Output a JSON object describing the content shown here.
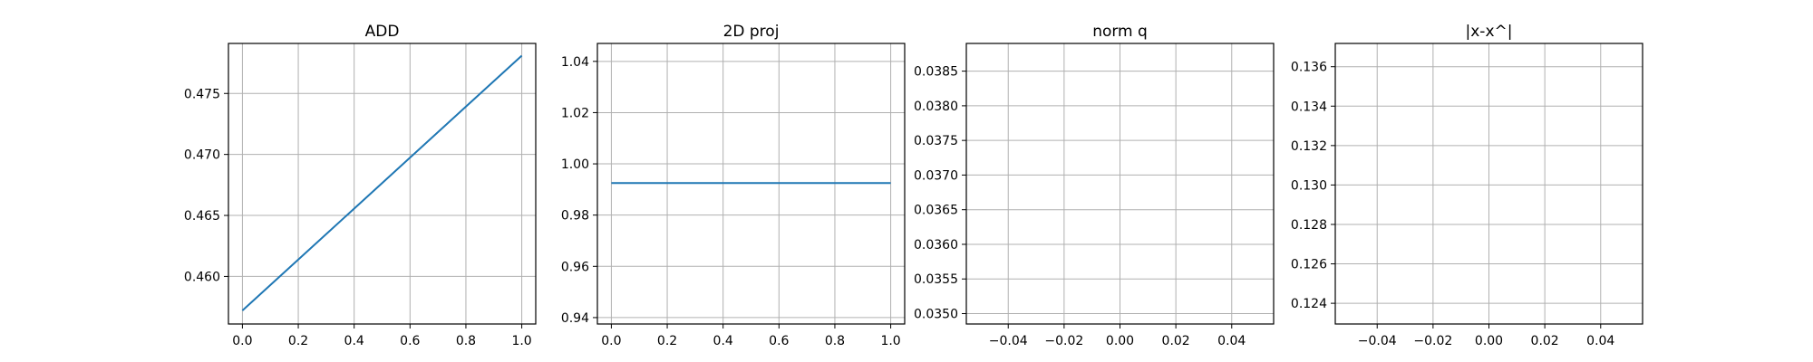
{
  "chart_data": [
    {
      "type": "line",
      "title": "ADD",
      "xlabel": "",
      "ylabel": "",
      "xlim": [
        -0.05,
        1.05
      ],
      "ylim": [
        0.4561,
        0.4791
      ],
      "xticks": [
        0.0,
        0.2,
        0.4,
        0.6,
        0.8,
        1.0
      ],
      "xtick_labels": [
        "0.0",
        "0.2",
        "0.4",
        "0.6",
        "0.8",
        "1.0"
      ],
      "yticks": [
        0.46,
        0.465,
        0.47,
        0.475
      ],
      "ytick_labels": [
        "0.460",
        "0.465",
        "0.470",
        "0.475"
      ],
      "grid": true,
      "series": [
        {
          "x": [
            0.0,
            1.0
          ],
          "y": [
            0.4572,
            0.4781
          ],
          "color": "#1f77b4"
        }
      ]
    },
    {
      "type": "line",
      "title": "2D proj",
      "xlabel": "",
      "ylabel": "",
      "xlim": [
        -0.05,
        1.05
      ],
      "ylim": [
        0.9375,
        1.047
      ],
      "xticks": [
        0.0,
        0.2,
        0.4,
        0.6,
        0.8,
        1.0
      ],
      "xtick_labels": [
        "0.0",
        "0.2",
        "0.4",
        "0.6",
        "0.8",
        "1.0"
      ],
      "yticks": [
        0.94,
        0.96,
        0.98,
        1.0,
        1.02,
        1.04
      ],
      "ytick_labels": [
        "0.94",
        "0.96",
        "0.98",
        "1.00",
        "1.02",
        "1.04"
      ],
      "grid": true,
      "series": [
        {
          "x": [
            0.0,
            1.0
          ],
          "y": [
            0.9925,
            0.9925
          ],
          "color": "#1f77b4"
        }
      ]
    },
    {
      "type": "line",
      "title": "norm q",
      "xlabel": "",
      "ylabel": "",
      "xlim": [
        -0.055,
        0.055
      ],
      "ylim": [
        0.03485,
        0.0389
      ],
      "xticks": [
        -0.04,
        -0.02,
        0.0,
        0.02,
        0.04
      ],
      "xtick_labels": [
        "−0.04",
        "−0.02",
        "0.00",
        "0.02",
        "0.04"
      ],
      "yticks": [
        0.035,
        0.0355,
        0.036,
        0.0365,
        0.037,
        0.0375,
        0.038,
        0.0385
      ],
      "ytick_labels": [
        "0.0350",
        "0.0355",
        "0.0360",
        "0.0365",
        "0.0370",
        "0.0375",
        "0.0380",
        "0.0385"
      ],
      "grid": true,
      "series": []
    },
    {
      "type": "line",
      "title": "|x-x^|",
      "xlabel": "",
      "ylabel": "",
      "xlim": [
        -0.055,
        0.055
      ],
      "ylim": [
        0.12295,
        0.13718
      ],
      "xticks": [
        -0.04,
        -0.02,
        0.0,
        0.02,
        0.04
      ],
      "xtick_labels": [
        "−0.04",
        "−0.02",
        "0.00",
        "0.02",
        "0.04"
      ],
      "yticks": [
        0.124,
        0.126,
        0.128,
        0.13,
        0.132,
        0.134,
        0.136
      ],
      "ytick_labels": [
        "0.124",
        "0.126",
        "0.128",
        "0.130",
        "0.132",
        "0.134",
        "0.136"
      ],
      "grid": true,
      "series": []
    }
  ]
}
